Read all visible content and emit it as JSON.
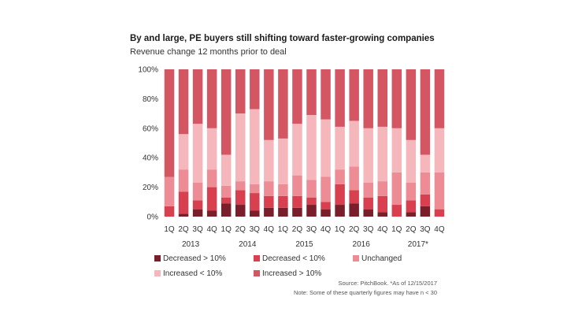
{
  "chart_data": {
    "type": "bar",
    "stacked": true,
    "title": "By and large, PE buyers still shifting toward faster-growing companies",
    "subtitle": "Revenue change 12 months prior to deal",
    "xlabel": "",
    "ylabel": "",
    "ylim": [
      0,
      100
    ],
    "yticks": [
      "0%",
      "20%",
      "40%",
      "60%",
      "80%",
      "100%"
    ],
    "categories": [
      "1Q",
      "2Q",
      "3Q",
      "4Q",
      "1Q",
      "2Q",
      "3Q",
      "4Q",
      "1Q",
      "2Q",
      "3Q",
      "4Q",
      "1Q",
      "2Q",
      "3Q",
      "4Q",
      "1Q",
      "2Q",
      "3Q",
      "4Q"
    ],
    "year_labels": [
      {
        "label": "2013",
        "start": 0,
        "end": 3
      },
      {
        "label": "2014",
        "start": 4,
        "end": 7
      },
      {
        "label": "2015",
        "start": 8,
        "end": 11
      },
      {
        "label": "2016",
        "start": 12,
        "end": 15
      },
      {
        "label": "2017*",
        "start": 16,
        "end": 19
      }
    ],
    "series": [
      {
        "name": "Decreased > 10%",
        "color": "#7a1e2b",
        "values": [
          0,
          2,
          5,
          4,
          9,
          8,
          4,
          6,
          6,
          6,
          8,
          5,
          8,
          9,
          5,
          3,
          0,
          3,
          7,
          0
        ]
      },
      {
        "name": "Decreased < 10%",
        "color": "#d8404f",
        "values": [
          7,
          15,
          6,
          16,
          4,
          10,
          12,
          8,
          8,
          8,
          5,
          5,
          14,
          9,
          8,
          11,
          8,
          8,
          8,
          5
        ]
      },
      {
        "name": "Unchanged",
        "color": "#ee8c95",
        "values": [
          20,
          15,
          12,
          12,
          8,
          6,
          6,
          10,
          8,
          14,
          12,
          17,
          10,
          16,
          10,
          10,
          22,
          12,
          15,
          25
        ]
      },
      {
        "name": "Increased < 10%",
        "color": "#f5b6bc",
        "values": [
          0,
          24,
          40,
          28,
          21,
          46,
          51,
          28,
          31,
          35,
          44,
          39,
          29,
          31,
          37,
          37,
          30,
          29,
          12,
          30
        ]
      },
      {
        "name": "Increased > 10%",
        "color": "#d55663",
        "values": [
          73,
          44,
          37,
          40,
          58,
          30,
          27,
          48,
          47,
          37,
          31,
          34,
          39,
          35,
          40,
          39,
          40,
          48,
          58,
          40
        ]
      }
    ],
    "legend_position": "bottom",
    "source": "Source: PitchBook. *As of 12/15/2017",
    "note": "Note: Some of these quarterly figures may have n < 30"
  }
}
